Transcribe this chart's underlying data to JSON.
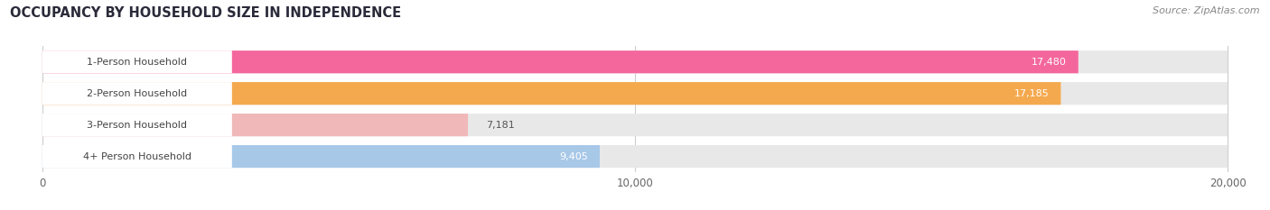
{
  "title": "OCCUPANCY BY HOUSEHOLD SIZE IN INDEPENDENCE",
  "source": "Source: ZipAtlas.com",
  "categories": [
    "1-Person Household",
    "2-Person Household",
    "3-Person Household",
    "4+ Person Household"
  ],
  "values": [
    17480,
    17185,
    7181,
    9405
  ],
  "bar_colors": [
    "#F4679D",
    "#F5A94E",
    "#F0B8B8",
    "#A8C8E8"
  ],
  "background_color": "#ffffff",
  "bar_bg_color": "#e8e8e8",
  "xlim": [
    -500,
    20500
  ],
  "xlim_data": [
    0,
    20000
  ],
  "xticks": [
    0,
    10000,
    20000
  ],
  "xtick_labels": [
    "0",
    "10,000",
    "20,000"
  ],
  "label_color": "#444444",
  "title_color": "#2a2a3a",
  "figsize": [
    14.06,
    2.33
  ],
  "dpi": 100,
  "bar_height": 0.72,
  "bar_gap": 0.28,
  "label_bg_color": "#ffffff"
}
